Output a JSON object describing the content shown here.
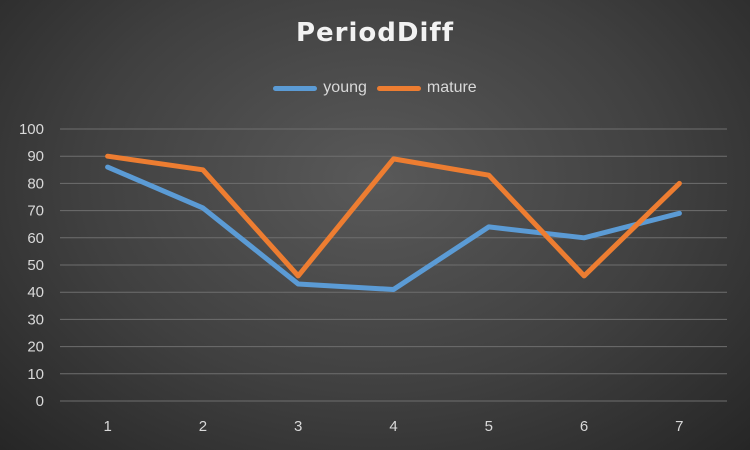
{
  "chart_data": {
    "type": "line",
    "title": "PeriodDiff",
    "categories": [
      "1",
      "2",
      "3",
      "4",
      "5",
      "6",
      "7"
    ],
    "series": [
      {
        "name": "young",
        "color": "#5B9BD5",
        "values": [
          86,
          71,
          43,
          41,
          64,
          60,
          69
        ]
      },
      {
        "name": "mature",
        "color": "#ED7D31",
        "values": [
          90,
          85,
          46,
          89,
          83,
          46,
          80
        ]
      }
    ],
    "ylim": [
      0,
      100
    ],
    "yticks": [
      0,
      10,
      20,
      30,
      40,
      50,
      60,
      70,
      80,
      90,
      100
    ],
    "grid": true,
    "legend_position": "top",
    "colors": {
      "background": "#404040",
      "grid": "#6e6e6e",
      "text": "#d9d9d9"
    }
  }
}
